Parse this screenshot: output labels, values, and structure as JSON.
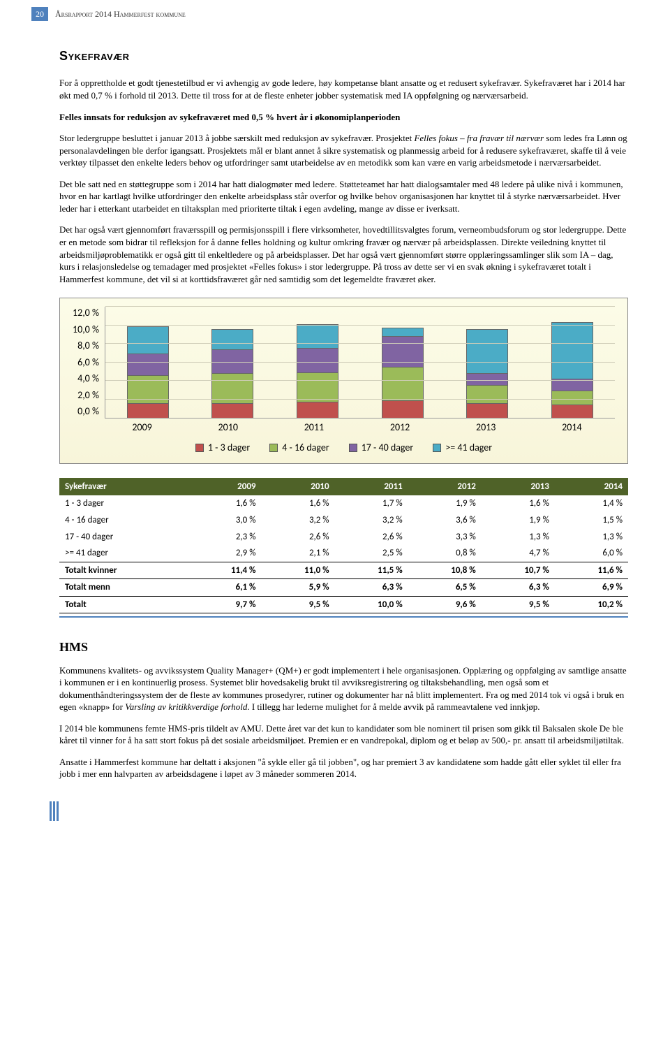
{
  "header": {
    "page_number": "20",
    "title": "Årsrapport 2014 Hammerfest kommune"
  },
  "section1": {
    "title": "Sykefravær",
    "p1": "For å opprettholde et godt tjenestetilbud er vi avhengig av gode ledere, høy kompetanse blant ansatte og et redusert sykefravær. Sykefraværet har i 2014 har økt med 0,7 % i forhold til 2013.  Dette til tross for at de fleste enheter jobber systematisk med IA oppfølgning og nærværsarbeid.",
    "sub1": "Felles innsats for reduksjon av sykefraværet med 0,5 % hvert år i økonomiplanperioden",
    "p2a": "Stor ledergruppe besluttet i januar 2013 å jobbe særskilt med reduksjon av sykefravær. Prosjektet ",
    "p2b": "Felles fokus – fra fravær til nærvær",
    "p2c": " som ledes fra Lønn og personalavdelingen ble derfor igangsatt.  Prosjektets mål er blant annet å sikre systematisk og planmessig arbeid for å redusere sykefraværet, skaffe til å veie verktøy tilpasset den enkelte leders behov og utfordringer samt utarbeidelse av en metodikk som kan være en varig arbeidsmetode i nærværsarbeidet.",
    "p3": "Det ble satt ned en støttegruppe som i 2014 har hatt dialogmøter med ledere. Støtteteamet har hatt dialogsamtaler med 48 ledere på ulike nivå i kommunen, hvor en har kartlagt hvilke utfordringer den enkelte arbeidsplass står overfor og hvilke behov organisasjonen har knyttet til å styrke nærværsarbeidet. Hver leder har i etterkant utarbeidet en tiltaksplan med prioriterte tiltak i egen avdeling, mange av disse er iverksatt.",
    "p4a": "Det har også vært gjennomført fraværsspill og permisjonsspill i flere virksomheter, hovedtillitsvalgtes forum, verneombudsforum og stor ledergruppe.  Dette er en metode som bidrar til refleksjon for å danne felles holdning og kultur omkring fravær og nærvær på arbeidsplassen. Direkte veiledning knyttet til arbeidsmiljøproblematikk er også gitt til enkeltledere og på arbeidsplasser. Det har også vært gjennomført større opplæringssamlinger slik som IA – dag, kurs i relasjonsledelse og temadager med prosjektet «Felles fokus» i stor ledergruppe. På tross av dette ser vi en svak økning i sykefraværet totalt i Hammerfest kommune, det vil si at korttidsfraværet går ned samtidig som det legemeldte fraværet øker."
  },
  "chart": {
    "type": "stacked-bar",
    "y_ticks": [
      "0,0 %",
      "2,0 %",
      "4,0 %",
      "6,0 %",
      "8,0 %",
      "10,0 %",
      "12,0 %"
    ],
    "y_max": 12,
    "categories": [
      "2009",
      "2010",
      "2011",
      "2012",
      "2013",
      "2014"
    ],
    "series": [
      {
        "name": "1 - 3 dager",
        "color": "#c0504d",
        "values": [
          1.6,
          1.6,
          1.7,
          1.9,
          1.6,
          1.4
        ]
      },
      {
        "name": "4 - 16 dager",
        "color": "#9bbb59",
        "values": [
          3.0,
          3.2,
          3.2,
          3.6,
          1.9,
          1.5
        ]
      },
      {
        "name": "17 - 40 dager",
        "color": "#8064a2",
        "values": [
          2.3,
          2.6,
          2.6,
          3.3,
          1.3,
          1.3
        ]
      },
      {
        "name": ">= 41 dager",
        "color": "#4bacc6",
        "values": [
          2.9,
          2.1,
          2.5,
          0.8,
          4.7,
          6.0
        ]
      }
    ],
    "background": "#faf7dd",
    "grid_color": "#cfcdb8",
    "font_family": "Calibri"
  },
  "table": {
    "header_label": "Sykefravær",
    "header_bg": "#4f6228",
    "header_fg": "#ffffff",
    "columns": [
      "2009",
      "2010",
      "2011",
      "2012",
      "2013",
      "2014"
    ],
    "rows": [
      {
        "label": "1 - 3 dager",
        "vals": [
          "1,6 %",
          "1,6 %",
          "1,7 %",
          "1,9 %",
          "1,6 %",
          "1,4 %"
        ],
        "strong": false
      },
      {
        "label": "4 - 16 dager",
        "vals": [
          "3,0 %",
          "3,2 %",
          "3,2 %",
          "3,6 %",
          "1,9 %",
          "1,5 %"
        ],
        "strong": false
      },
      {
        "label": "17 - 40 dager",
        "vals": [
          "2,3 %",
          "2,6 %",
          "2,6 %",
          "3,3 %",
          "1,3 %",
          "1,3 %"
        ],
        "strong": false
      },
      {
        "label": ">= 41 dager",
        "vals": [
          "2,9 %",
          "2,1 %",
          "2,5 %",
          "0,8 %",
          "4,7 %",
          "6,0 %"
        ],
        "strong": false
      },
      {
        "label": "Totalt kvinner",
        "vals": [
          "11,4 %",
          "11,0 %",
          "11,5 %",
          "10,8 %",
          "10,7 %",
          "11,6 %"
        ],
        "strong": true
      },
      {
        "label": "Totalt menn",
        "vals": [
          "6,1 %",
          "5,9 %",
          "6,3 %",
          "6,5 %",
          "6,3 %",
          "6,9 %"
        ],
        "strong": true
      },
      {
        "label": "Totalt",
        "vals": [
          "9,7 %",
          "9,5 %",
          "10,0 %",
          "9,6 %",
          "9,5 %",
          "10,2 %"
        ],
        "strong": true
      }
    ]
  },
  "section2": {
    "title": "HMS",
    "p1a": "Kommunens kvalitets- og avvikssystem Quality Manager+ (QM+) er godt implementert i hele organisasjonen. Opplæring og oppfølging av samtlige ansatte i kommunen er i en kontinuerlig prosess.  Systemet blir hovedsakelig brukt til avviksregistrering og tiltaksbehandling, men også som et dokumenthåndteringssystem der de fleste av kommunes prosedyrer, rutiner og dokumenter har nå blitt implementert. Fra og med 2014 tok vi også i bruk en egen «knapp» for ",
    "p1b": "Varsling av kritikkverdige forhold",
    "p1c": ". I tillegg har lederne mulighet for å melde avvik på rammeavtalene ved innkjøp.",
    "p2": "I 2014 ble kommunens femte HMS-pris tildelt av AMU. Dette året var det kun to kandidater som ble nominert til prisen som gikk til Baksalen skole De ble kåret til vinner for å ha satt stort fokus på det sosiale arbeidsmiljøet. Premien er en vandrepokal, diplom og et beløp av 500,- pr. ansatt til arbeidsmiljøtiltak.",
    "p3": "Ansatte i Hammerfest kommune har deltatt i aksjonen \"å sykle eller gå til jobben\", og har premiert 3 av kandidatene som hadde gått eller syklet til eller fra jobb i mer enn halvparten av arbeidsdagene i løpet av 3 måneder sommeren 2014."
  }
}
